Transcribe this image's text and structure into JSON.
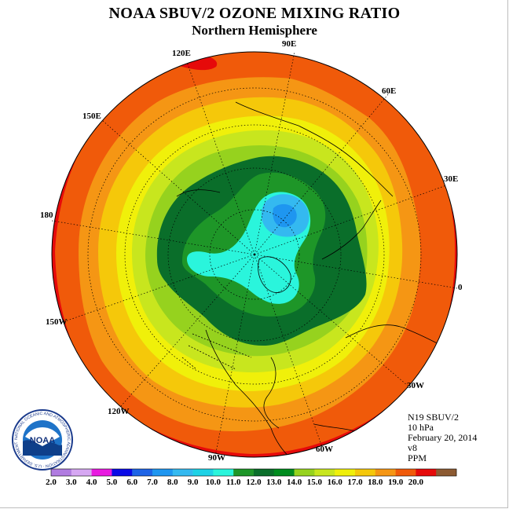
{
  "header": {
    "title": "NOAA SBUV/2 OZONE MIXING RATIO",
    "subtitle": "Northern Hemisphere"
  },
  "map": {
    "projection": "north-polar-stereographic",
    "longitude_labels": [
      "90E",
      "60E",
      "30E",
      "0",
      "30W",
      "60W",
      "90W",
      "120W",
      "150W",
      "180",
      "150E",
      "120E"
    ]
  },
  "info": {
    "satellite": "N19 SBUV/2",
    "level": "10 hPa",
    "date": "February 20, 2014",
    "version": "v8",
    "units": "PPM"
  },
  "colorbar": {
    "ticks": [
      "2.0",
      "3.0",
      "4.0",
      "5.0",
      "6.0",
      "7.0",
      "8.0",
      "9.0",
      "10.0",
      "11.0",
      "12.0",
      "13.0",
      "14.0",
      "15.0",
      "16.0",
      "17.0",
      "18.0",
      "19.0",
      "20.0"
    ],
    "colors": [
      "#b07be0",
      "#d6a7f2",
      "#e81ae0",
      "#0a0ae6",
      "#1e64e6",
      "#1e96f0",
      "#34b9f0",
      "#1ed2e6",
      "#2af5dc",
      "#1e9628",
      "#0a6e2a",
      "#008c1e",
      "#96d21e",
      "#c8e61e",
      "#f0f00a",
      "#f5c80a",
      "#f59614",
      "#f05a0a",
      "#e60a0a",
      "#8c5a32"
    ]
  },
  "logo": {
    "text": "NOAA",
    "ring_text": "NATIONAL OCEANIC AND ATMOSPHERIC ADMINISTRATION · U.S. DEPARTMENT OF COMMERCE"
  }
}
